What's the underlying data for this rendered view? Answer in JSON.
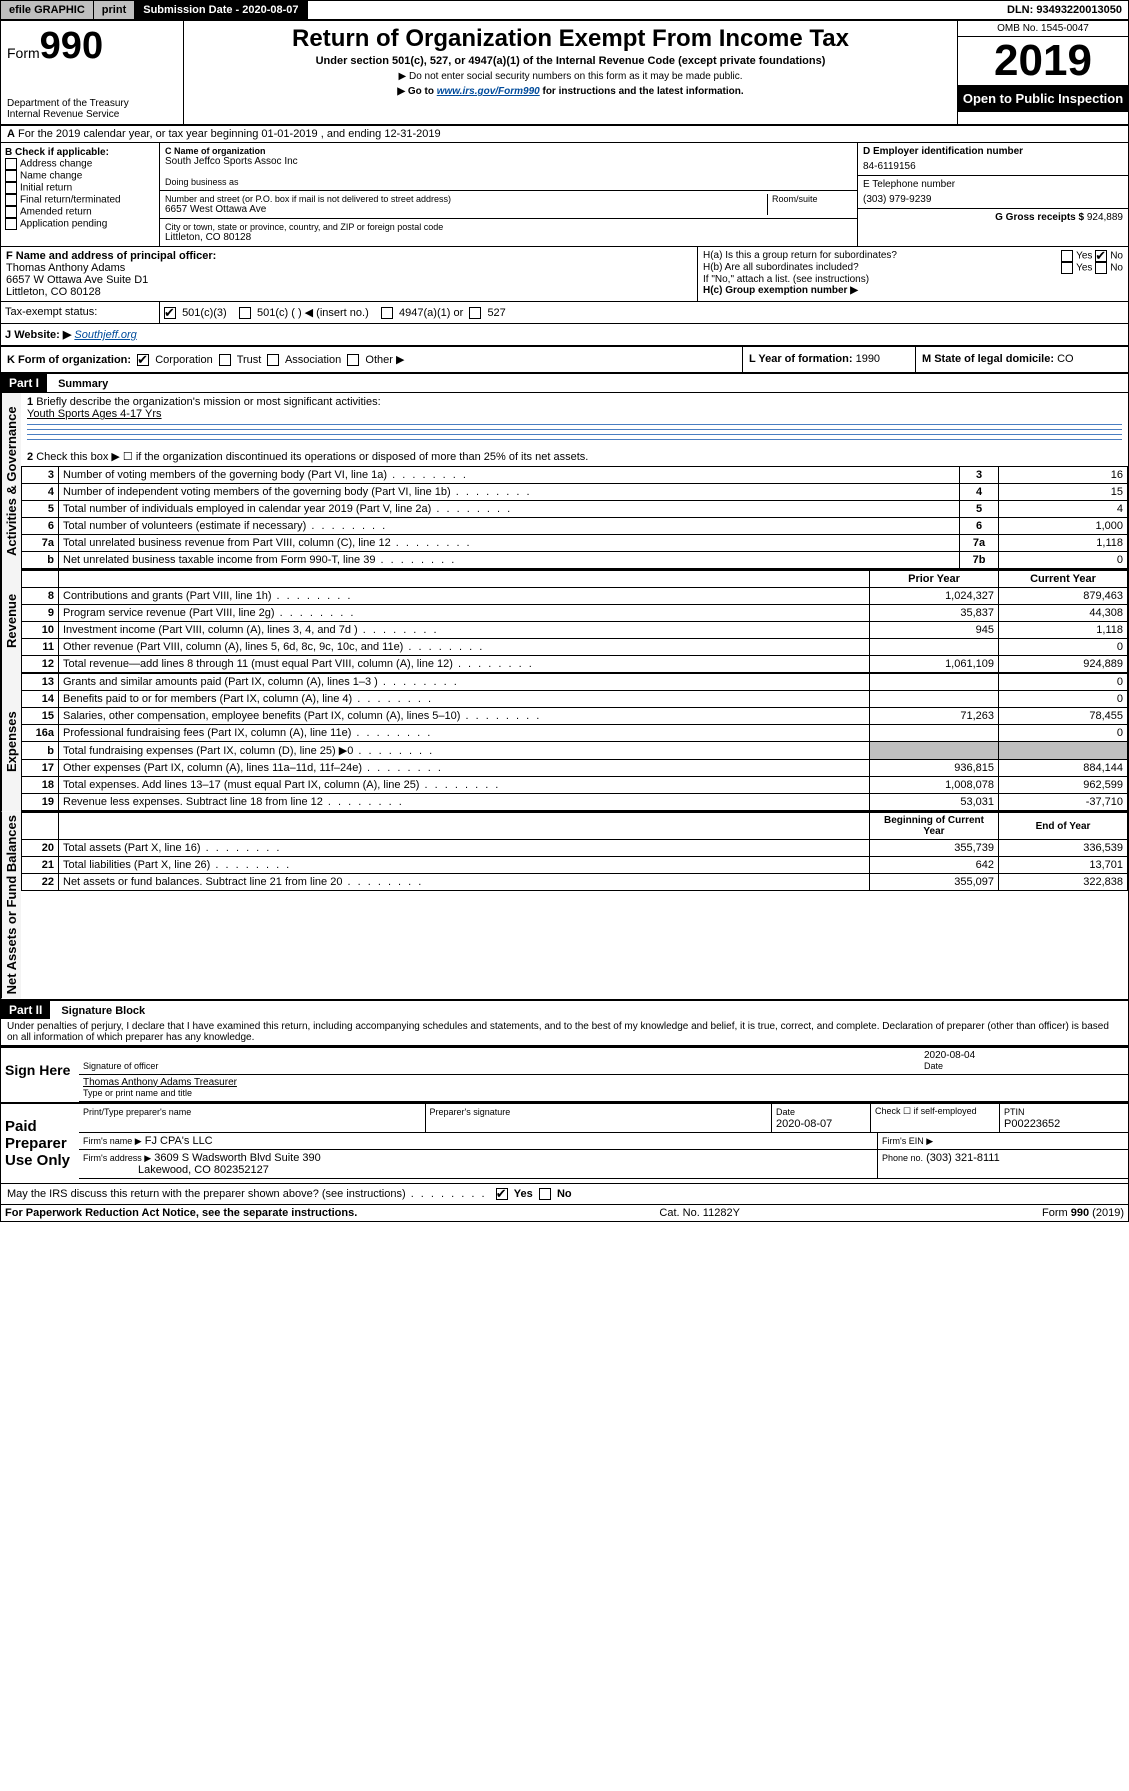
{
  "topbar": {
    "efile": "efile GRAPHIC",
    "print": "print",
    "submission_label": "Submission Date - 2020-08-07",
    "dln": "DLN: 93493220013050"
  },
  "header": {
    "form_prefix": "Form",
    "form_number": "990",
    "dept": "Department of the Treasury\nInternal Revenue Service",
    "title": "Return of Organization Exempt From Income Tax",
    "subtitle": "Under section 501(c), 527, or 4947(a)(1) of the Internal Revenue Code (except private foundations)",
    "note1": "▶ Do not enter social security numbers on this form as it may be made public.",
    "note2_pre": "▶ Go to ",
    "note2_url": "www.irs.gov/Form990",
    "note2_post": " for instructions and the latest information.",
    "omb": "OMB No. 1545-0047",
    "year": "2019",
    "open": "Open to Public Inspection"
  },
  "a_line": "For the 2019 calendar year, or tax year beginning 01-01-2019  , and ending 12-31-2019",
  "b": {
    "label": "B Check if applicable:",
    "opts": [
      "Address change",
      "Name change",
      "Initial return",
      "Final return/terminated",
      "Amended return",
      "Application pending"
    ]
  },
  "c": {
    "name_lbl": "C Name of organization",
    "name": "South Jeffco Sports Assoc Inc",
    "dba_lbl": "Doing business as",
    "street_lbl": "Number and street (or P.O. box if mail is not delivered to street address)",
    "room_lbl": "Room/suite",
    "street": "6657 West Ottawa Ave",
    "city_lbl": "City or town, state or province, country, and ZIP or foreign postal code",
    "city": "Littleton, CO  80128"
  },
  "d": {
    "lbl": "D Employer identification number",
    "val": "84-6119156"
  },
  "e": {
    "lbl": "E Telephone number",
    "val": "(303) 979-9239"
  },
  "g": {
    "lbl": "G Gross receipts $",
    "val": "924,889"
  },
  "f": {
    "lbl": "F  Name and address of principal officer:",
    "name": "Thomas Anthony Adams",
    "addr1": "6657 W Ottawa Ave Suite D1",
    "addr2": "Littleton, CO  80128"
  },
  "h": {
    "a_lbl": "H(a)  Is this a group return for subordinates?",
    "b_lbl": "H(b)  Are all subordinates included?",
    "b_note": "If \"No,\" attach a list. (see instructions)",
    "c_lbl": "H(c)  Group exemption number ▶",
    "yes": "Yes",
    "no": "No"
  },
  "i": {
    "lbl": "Tax-exempt status:",
    "c3": "501(c)(3)",
    "c_insert": "501(c) (  ) ◀ (insert no.)",
    "a1": "4947(a)(1) or",
    "s527": "527"
  },
  "j": {
    "lbl": "Website: ▶",
    "val": "Southjeff.org"
  },
  "k": {
    "lbl": "K Form of organization:",
    "corp": "Corporation",
    "trust": "Trust",
    "assoc": "Association",
    "other": "Other ▶"
  },
  "l": {
    "lbl": "L Year of formation:",
    "val": "1990"
  },
  "m": {
    "lbl": "M State of legal domicile:",
    "val": "CO"
  },
  "part1": {
    "title": "Part I",
    "sub": "Summary",
    "vert_ag": "Activities & Governance",
    "vert_rev": "Revenue",
    "vert_exp": "Expenses",
    "vert_na": "Net Assets or Fund Balances",
    "l1": "Briefly describe the organization's mission or most significant activities:",
    "l1_val": "Youth Sports Ages 4-17 Yrs",
    "l2": "Check this box ▶ ☐  if the organization discontinued its operations or disposed of more than 25% of its net assets.",
    "rows_ag": [
      {
        "n": "3",
        "t": "Number of voting members of the governing body (Part VI, line 1a)",
        "b": "3",
        "v": "16"
      },
      {
        "n": "4",
        "t": "Number of independent voting members of the governing body (Part VI, line 1b)",
        "b": "4",
        "v": "15"
      },
      {
        "n": "5",
        "t": "Total number of individuals employed in calendar year 2019 (Part V, line 2a)",
        "b": "5",
        "v": "4"
      },
      {
        "n": "6",
        "t": "Total number of volunteers (estimate if necessary)",
        "b": "6",
        "v": "1,000"
      },
      {
        "n": "7a",
        "t": "Total unrelated business revenue from Part VIII, column (C), line 12",
        "b": "7a",
        "v": "1,118"
      },
      {
        "n": "b",
        "t": "Net unrelated business taxable income from Form 990-T, line 39",
        "b": "7b",
        "v": "0"
      }
    ],
    "col_prior": "Prior Year",
    "col_curr": "Current Year",
    "rows_rev": [
      {
        "n": "8",
        "t": "Contributions and grants (Part VIII, line 1h)",
        "p": "1,024,327",
        "c": "879,463"
      },
      {
        "n": "9",
        "t": "Program service revenue (Part VIII, line 2g)",
        "p": "35,837",
        "c": "44,308"
      },
      {
        "n": "10",
        "t": "Investment income (Part VIII, column (A), lines 3, 4, and 7d )",
        "p": "945",
        "c": "1,118"
      },
      {
        "n": "11",
        "t": "Other revenue (Part VIII, column (A), lines 5, 6d, 8c, 9c, 10c, and 11e)",
        "p": "",
        "c": "0"
      },
      {
        "n": "12",
        "t": "Total revenue—add lines 8 through 11 (must equal Part VIII, column (A), line 12)",
        "p": "1,061,109",
        "c": "924,889"
      }
    ],
    "rows_exp": [
      {
        "n": "13",
        "t": "Grants and similar amounts paid (Part IX, column (A), lines 1–3 )",
        "p": "",
        "c": "0"
      },
      {
        "n": "14",
        "t": "Benefits paid to or for members (Part IX, column (A), line 4)",
        "p": "",
        "c": "0"
      },
      {
        "n": "15",
        "t": "Salaries, other compensation, employee benefits (Part IX, column (A), lines 5–10)",
        "p": "71,263",
        "c": "78,455"
      },
      {
        "n": "16a",
        "t": "Professional fundraising fees (Part IX, column (A), line 11e)",
        "p": "",
        "c": "0"
      },
      {
        "n": "b",
        "t": "Total fundraising expenses (Part IX, column (D), line 25) ▶0",
        "p": "shade",
        "c": "shade"
      },
      {
        "n": "17",
        "t": "Other expenses (Part IX, column (A), lines 11a–11d, 11f–24e)",
        "p": "936,815",
        "c": "884,144"
      },
      {
        "n": "18",
        "t": "Total expenses. Add lines 13–17 (must equal Part IX, column (A), line 25)",
        "p": "1,008,078",
        "c": "962,599"
      },
      {
        "n": "19",
        "t": "Revenue less expenses. Subtract line 18 from line 12",
        "p": "53,031",
        "c": "-37,710"
      }
    ],
    "col_boy": "Beginning of Current Year",
    "col_eoy": "End of Year",
    "rows_na": [
      {
        "n": "20",
        "t": "Total assets (Part X, line 16)",
        "p": "355,739",
        "c": "336,539"
      },
      {
        "n": "21",
        "t": "Total liabilities (Part X, line 26)",
        "p": "642",
        "c": "13,701"
      },
      {
        "n": "22",
        "t": "Net assets or fund balances. Subtract line 21 from line 20",
        "p": "355,097",
        "c": "322,838"
      }
    ]
  },
  "part2": {
    "title": "Part II",
    "sub": "Signature Block",
    "decl": "Under penalties of perjury, I declare that I have examined this return, including accompanying schedules and statements, and to the best of my knowledge and belief, it is true, correct, and complete. Declaration of preparer (other than officer) is based on all information of which preparer has any knowledge.",
    "sign_here": "Sign Here",
    "sig_off": "Signature of officer",
    "date_lbl": "Date",
    "date": "2020-08-04",
    "typed": "Thomas Anthony Adams  Treasurer",
    "typed_lbl": "Type or print name and title",
    "paid": "Paid Preparer Use Only",
    "prep_name_lbl": "Print/Type preparer's name",
    "prep_sig_lbl": "Preparer's signature",
    "prep_date": "2020-08-07",
    "self_emp": "Check ☐  if self-employed",
    "ptin_lbl": "PTIN",
    "ptin": "P00223652",
    "firm_lbl": "Firm's name   ▶",
    "firm": "FJ CPA's LLC",
    "ein_lbl": "Firm's EIN ▶",
    "addr_lbl": "Firm's address ▶",
    "addr": "3609 S Wadsworth Blvd Suite 390",
    "addr2": "Lakewood, CO  802352127",
    "phone_lbl": "Phone no.",
    "phone": "(303) 321-8111",
    "discuss": "May the IRS discuss this return with the preparer shown above? (see instructions)"
  },
  "footer": {
    "pra": "For Paperwork Reduction Act Notice, see the separate instructions.",
    "cat": "Cat. No. 11282Y",
    "form": "Form 990 (2019)"
  }
}
